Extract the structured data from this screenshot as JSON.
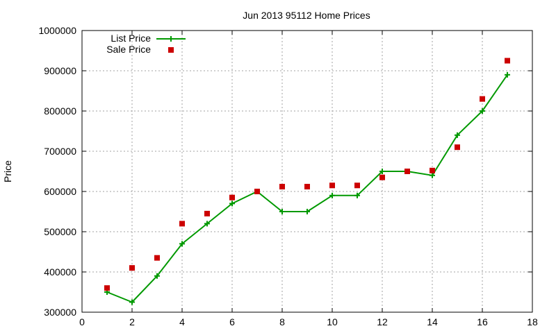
{
  "chart_data": {
    "type": "line",
    "title": "Jun 2013 95112 Home Prices",
    "xlabel": "",
    "ylabel": "Price",
    "xlim": [
      0,
      18
    ],
    "ylim": [
      300000,
      1000000
    ],
    "x_ticks": [
      0,
      2,
      4,
      6,
      8,
      10,
      12,
      14,
      16,
      18
    ],
    "y_ticks": [
      300000,
      400000,
      500000,
      600000,
      700000,
      800000,
      900000,
      1000000
    ],
    "x_tick_labels": [
      "0",
      "2",
      "4",
      "6",
      "8",
      "10",
      "12",
      "14",
      "16",
      "18"
    ],
    "y_tick_labels": [
      "300000",
      "400000",
      "500000",
      "600000",
      "700000",
      "800000",
      "900000",
      "1000000"
    ],
    "grid": true,
    "legend_position": "top-left",
    "series": [
      {
        "name": "List Price",
        "style": "line-with-plus-markers",
        "color": "#009900",
        "x": [
          1,
          2,
          3,
          4,
          5,
          6,
          7,
          8,
          9,
          10,
          11,
          12,
          13,
          14,
          15,
          16,
          17
        ],
        "y": [
          350000,
          325000,
          390000,
          470000,
          520000,
          570000,
          600000,
          550000,
          550000,
          590000,
          590000,
          650000,
          650000,
          640000,
          740000,
          800000,
          890000
        ]
      },
      {
        "name": "Sale Price",
        "style": "square-markers",
        "color": "#cc0000",
        "x": [
          1,
          2,
          3,
          4,
          5,
          6,
          7,
          8,
          9,
          10,
          11,
          12,
          13,
          14,
          15,
          16,
          17
        ],
        "y": [
          360000,
          410000,
          435000,
          520000,
          545000,
          585000,
          600000,
          612000,
          612000,
          615000,
          615000,
          635000,
          650000,
          652000,
          710000,
          830000,
          925000
        ]
      }
    ]
  }
}
